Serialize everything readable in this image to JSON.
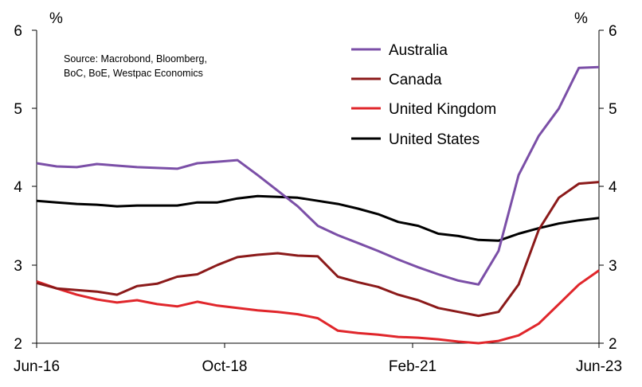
{
  "chart_data": {
    "type": "line",
    "title": "",
    "xlabel": "",
    "ylabel": "%",
    "ylabel_right": "%",
    "ylim": [
      2,
      6
    ],
    "yticks": [
      2,
      3,
      4,
      5,
      6
    ],
    "x_tick_labels": [
      "Jun-16",
      "Oct-18",
      "Feb-21",
      "Jun-23"
    ],
    "source_lines": [
      "Source: Macrobond, Bloomberg,",
      "BoC, BoE, Westpac Economics"
    ],
    "x": [
      0,
      1,
      2,
      3,
      4,
      5,
      6,
      7,
      8,
      9,
      10,
      11,
      12,
      13,
      14,
      15,
      16,
      17,
      18,
      19,
      20,
      21,
      22,
      23,
      24,
      25,
      26,
      27,
      28
    ],
    "series": [
      {
        "name": "Australia",
        "color": "#7b4fa7",
        "values": [
          4.3,
          4.26,
          4.25,
          4.29,
          4.27,
          4.25,
          4.24,
          4.23,
          4.3,
          4.32,
          4.34,
          4.15,
          3.95,
          3.75,
          3.5,
          3.38,
          3.28,
          3.18,
          3.07,
          2.97,
          2.88,
          2.8,
          2.75,
          3.18,
          4.15,
          4.65,
          5.0,
          5.52,
          5.53
        ]
      },
      {
        "name": "Canada",
        "color": "#8b1a1a",
        "values": [
          2.77,
          2.7,
          2.68,
          2.66,
          2.62,
          2.73,
          2.76,
          2.85,
          2.88,
          3.0,
          3.1,
          3.13,
          3.15,
          3.12,
          3.11,
          2.85,
          2.78,
          2.72,
          2.62,
          2.55,
          2.45,
          2.4,
          2.35,
          2.4,
          2.75,
          3.45,
          3.86,
          4.04,
          4.06
        ]
      },
      {
        "name": "United Kingdom",
        "color": "#e0262b",
        "values": [
          2.79,
          2.7,
          2.62,
          2.56,
          2.52,
          2.55,
          2.5,
          2.47,
          2.53,
          2.48,
          2.45,
          2.42,
          2.4,
          2.37,
          2.32,
          2.16,
          2.13,
          2.11,
          2.08,
          2.07,
          2.05,
          2.02,
          2.0,
          2.03,
          2.1,
          2.25,
          2.5,
          2.75,
          2.93
        ]
      },
      {
        "name": "United States",
        "color": "#000000",
        "values": [
          3.82,
          3.8,
          3.78,
          3.77,
          3.75,
          3.76,
          3.76,
          3.76,
          3.8,
          3.8,
          3.85,
          3.88,
          3.87,
          3.86,
          3.82,
          3.78,
          3.72,
          3.65,
          3.55,
          3.5,
          3.4,
          3.37,
          3.32,
          3.31,
          3.4,
          3.47,
          3.53,
          3.57,
          3.6
        ]
      }
    ],
    "legend": [
      "Australia",
      "Canada",
      "United Kingdom",
      "United States"
    ],
    "legend_placement": "top-right",
    "grid": false
  }
}
